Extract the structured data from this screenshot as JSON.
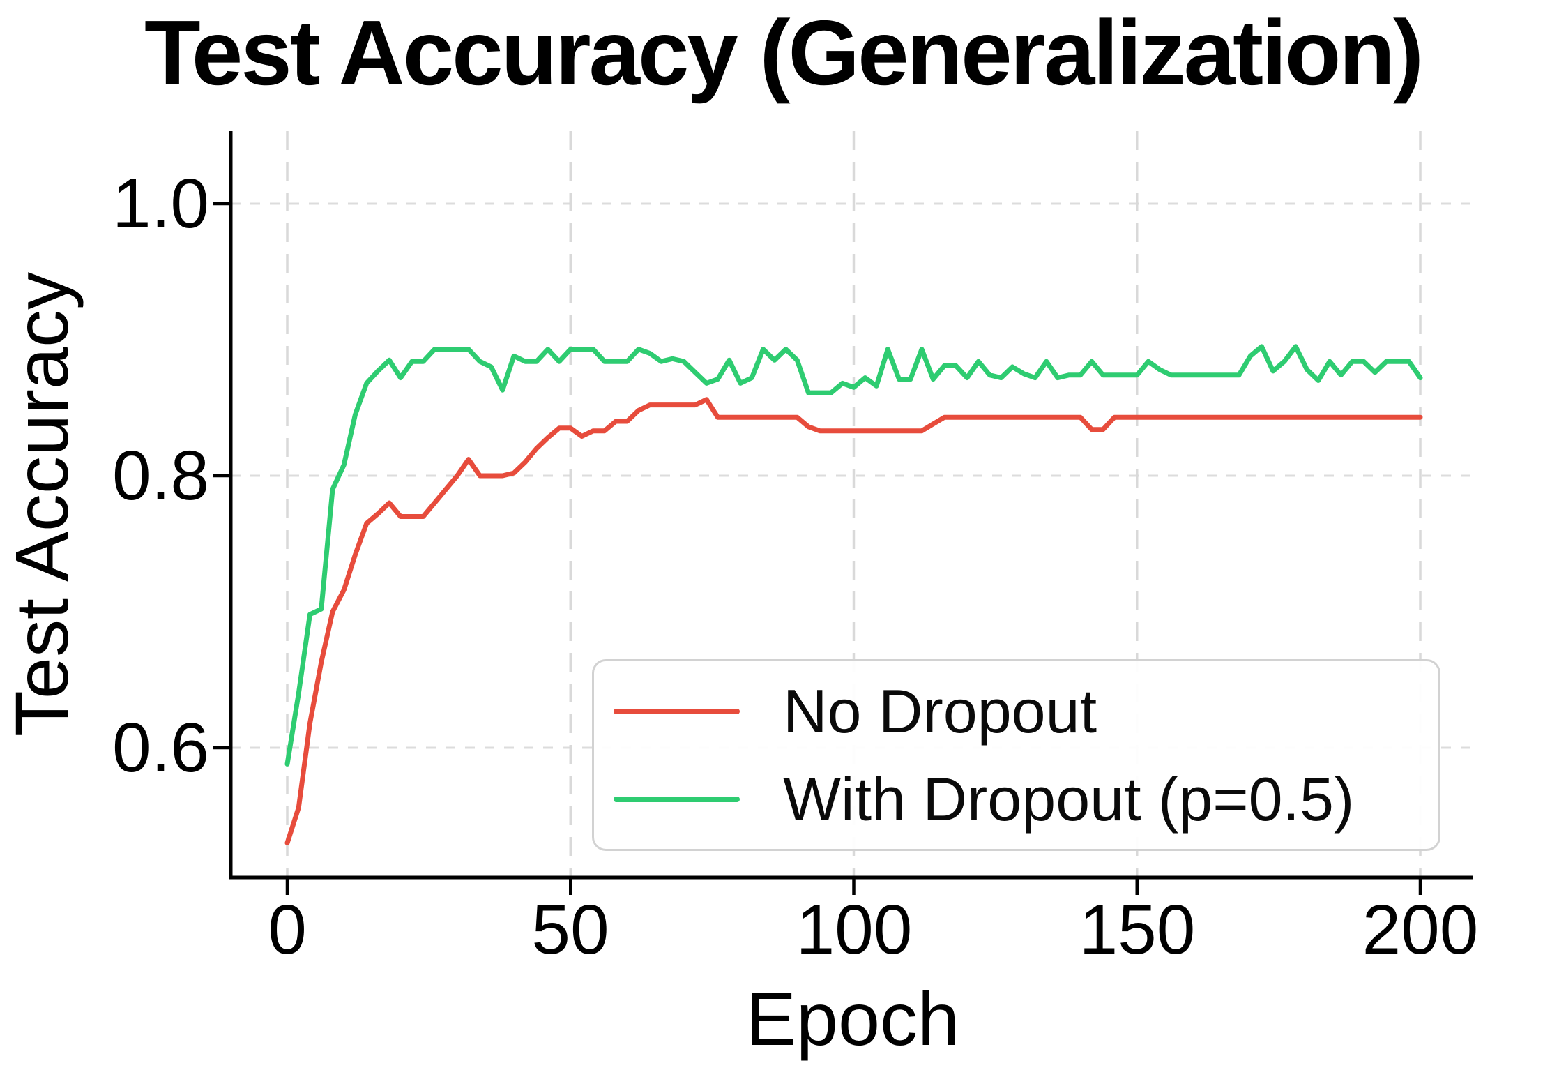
{
  "chart_data": {
    "type": "line",
    "title": "Test Accuracy (Generalization)",
    "xlabel": "Epoch",
    "ylabel": "Test Accuracy",
    "xticks": [
      0,
      50,
      100,
      150,
      200
    ],
    "xtick_labels": [
      "0",
      "50",
      "100",
      "150",
      "200"
    ],
    "yticks": [
      1.0,
      0.8,
      0.6
    ],
    "ytick_labels": [
      "1.0",
      "0.8",
      "0.6"
    ],
    "xlim": [
      -10,
      209
    ],
    "ylim": [
      0.505,
      1.053
    ],
    "grid": true,
    "grid_style": "dashed",
    "legend_position": "lower right",
    "x_start": 0,
    "x_step": 2,
    "series": [
      {
        "name": "No Dropout",
        "color": "#e74c3c",
        "values": [
          0.53,
          0.556,
          0.618,
          0.663,
          0.7,
          0.716,
          0.742,
          0.765,
          0.772,
          0.78,
          0.77,
          0.77,
          0.77,
          0.78,
          0.79,
          0.8,
          0.812,
          0.8,
          0.8,
          0.8,
          0.802,
          0.81,
          0.82,
          0.828,
          0.835,
          0.835,
          0.829,
          0.833,
          0.833,
          0.84,
          0.84,
          0.848,
          0.852,
          0.852,
          0.852,
          0.852,
          0.852,
          0.856,
          0.843,
          0.843,
          0.843,
          0.843,
          0.843,
          0.843,
          0.843,
          0.843,
          0.836,
          0.833,
          0.833,
          0.833,
          0.833,
          0.833,
          0.833,
          0.833,
          0.833,
          0.833,
          0.833,
          0.838,
          0.843,
          0.843,
          0.843,
          0.843,
          0.843,
          0.843,
          0.843,
          0.843,
          0.843,
          0.843,
          0.843,
          0.843,
          0.843,
          0.834,
          0.834,
          0.843,
          0.843,
          0.843,
          0.843,
          0.843,
          0.843,
          0.843,
          0.843,
          0.843,
          0.843,
          0.843,
          0.843,
          0.843,
          0.843,
          0.843,
          0.843,
          0.843,
          0.843,
          0.843,
          0.843,
          0.843,
          0.843,
          0.843,
          0.843,
          0.843,
          0.843,
          0.843,
          0.843
        ]
      },
      {
        "name": "With Dropout (p=0.5)",
        "color": "#2ecc71",
        "values": [
          0.588,
          0.64,
          0.698,
          0.702,
          0.79,
          0.808,
          0.845,
          0.868,
          0.877,
          0.885,
          0.872,
          0.884,
          0.884,
          0.893,
          0.893,
          0.893,
          0.893,
          0.884,
          0.88,
          0.863,
          0.888,
          0.884,
          0.884,
          0.893,
          0.884,
          0.893,
          0.893,
          0.893,
          0.884,
          0.884,
          0.884,
          0.893,
          0.89,
          0.884,
          0.886,
          0.884,
          0.876,
          0.868,
          0.871,
          0.885,
          0.868,
          0.872,
          0.893,
          0.885,
          0.893,
          0.885,
          0.861,
          0.861,
          0.861,
          0.868,
          0.865,
          0.872,
          0.866,
          0.893,
          0.871,
          0.871,
          0.893,
          0.871,
          0.881,
          0.881,
          0.872,
          0.884,
          0.874,
          0.872,
          0.88,
          0.875,
          0.872,
          0.884,
          0.872,
          0.874,
          0.874,
          0.884,
          0.874,
          0.874,
          0.874,
          0.874,
          0.884,
          0.878,
          0.874,
          0.874,
          0.874,
          0.874,
          0.874,
          0.874,
          0.874,
          0.888,
          0.895,
          0.877,
          0.884,
          0.895,
          0.878,
          0.87,
          0.884,
          0.874,
          0.884,
          0.884,
          0.876,
          0.884,
          0.884,
          0.884,
          0.872
        ]
      }
    ]
  }
}
